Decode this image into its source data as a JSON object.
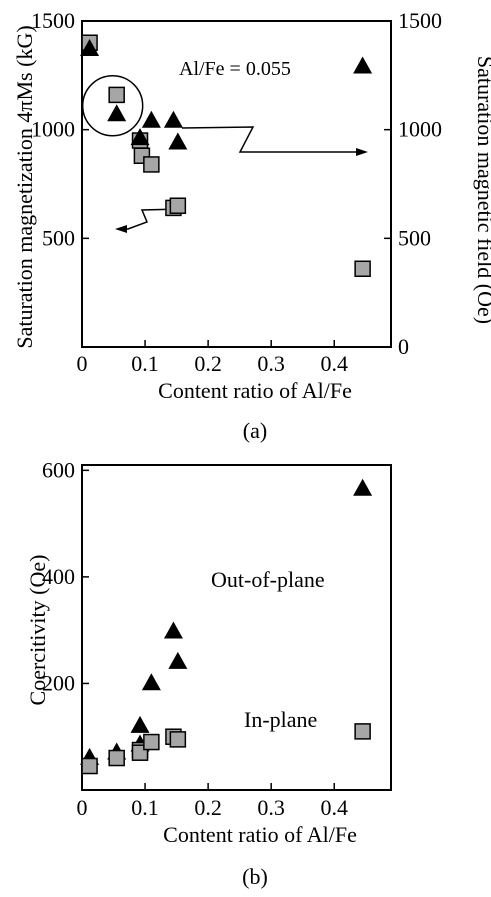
{
  "chart_data": [
    {
      "type": "scatter",
      "panel_label": "(a)",
      "xlabel": "Content ratio of Al/Fe",
      "ylabel_left": "Saturation magnetization 4πMs (kG)",
      "ylabel_right": "Saturation magnetic field (Oe)",
      "xlim": [
        0,
        0.49
      ],
      "ylim_left": [
        0,
        1500
      ],
      "ylim_right": [
        0,
        1500
      ],
      "x_ticks": [
        {
          "value": 0,
          "label": "0"
        },
        {
          "value": 0.1,
          "label": "0.1"
        },
        {
          "value": 0.2,
          "label": "0.2"
        },
        {
          "value": 0.3,
          "label": "0.3"
        },
        {
          "value": 0.4,
          "label": "0.4"
        }
      ],
      "y_ticks_left": [
        {
          "value": 500,
          "label": "500"
        },
        {
          "value": 1000,
          "label": "1000"
        },
        {
          "value": 1500,
          "label": "1500"
        }
      ],
      "y_ticks_right": [
        {
          "value": 0,
          "label": "0"
        },
        {
          "value": 500,
          "label": "500"
        },
        {
          "value": 1000,
          "label": "1000"
        },
        {
          "value": 1500,
          "label": "1500"
        }
      ],
      "annotation": "Al/Fe = 0.055",
      "annotation_x": 0.055,
      "series": [
        {
          "marker": "square",
          "color": "#a6a6a6",
          "axis": "left",
          "x": [
            0.012,
            0.055,
            0.092,
            0.095,
            0.11,
            0.145,
            0.152,
            0.445
          ],
          "y": [
            1400,
            1160,
            950,
            880,
            840,
            640,
            650,
            360
          ]
        },
        {
          "marker": "triangle",
          "color": "#000000",
          "axis": "right",
          "x": [
            0.012,
            0.055,
            0.092,
            0.11,
            0.145,
            0.152,
            0.445
          ],
          "y": [
            1370,
            1070,
            960,
            1040,
            1040,
            940,
            1290
          ]
        }
      ]
    },
    {
      "type": "scatter",
      "panel_label": "(b)",
      "xlabel": "Content ratio of Al/Fe",
      "ylabel": "Coercitivity (Oe)",
      "xlim": [
        0,
        0.49
      ],
      "ylim": [
        0,
        610
      ],
      "x_ticks": [
        {
          "value": 0,
          "label": "0"
        },
        {
          "value": 0.1,
          "label": "0.1"
        },
        {
          "value": 0.2,
          "label": "0.2"
        },
        {
          "value": 0.3,
          "label": "0.3"
        },
        {
          "value": 0.4,
          "label": "0.4"
        }
      ],
      "y_ticks": [
        {
          "value": 200,
          "label": "200"
        },
        {
          "value": 400,
          "label": "400"
        },
        {
          "value": 600,
          "label": "600"
        }
      ],
      "annotations": [
        "Out-of-plane",
        "In-plane"
      ],
      "series": [
        {
          "name": "Out-of-plane",
          "marker": "triangle",
          "color": "#000000",
          "x": [
            0.012,
            0.055,
            0.092,
            0.092,
            0.11,
            0.145,
            0.152,
            0.445
          ],
          "y": [
            60,
            70,
            120,
            85,
            200,
            297,
            240,
            565
          ]
        },
        {
          "name": "In-plane",
          "marker": "square",
          "color": "#a6a6a6",
          "x": [
            0.012,
            0.055,
            0.092,
            0.092,
            0.11,
            0.145,
            0.152,
            0.445
          ],
          "y": [
            45,
            60,
            75,
            70,
            90,
            100,
            95,
            110
          ]
        }
      ]
    }
  ]
}
